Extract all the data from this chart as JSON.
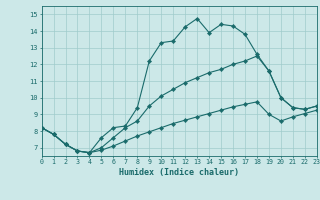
{
  "xlabel": "Humidex (Indice chaleur)",
  "bg_color": "#cce8e8",
  "grid_color": "#a0cccc",
  "line_color": "#1a6b6b",
  "xlim": [
    0,
    23
  ],
  "ylim": [
    6.5,
    15.5
  ],
  "xticks": [
    0,
    1,
    2,
    3,
    4,
    5,
    6,
    7,
    8,
    9,
    10,
    11,
    12,
    13,
    14,
    15,
    16,
    17,
    18,
    19,
    20,
    21,
    22,
    23
  ],
  "yticks": [
    7,
    8,
    9,
    10,
    11,
    12,
    13,
    14,
    15
  ],
  "line1_x": [
    0,
    1,
    2,
    3,
    4,
    5,
    6,
    7,
    8,
    9,
    10,
    11,
    12,
    13,
    14,
    15,
    16,
    17,
    18,
    19,
    20,
    21,
    22,
    23
  ],
  "line1_y": [
    8.2,
    7.8,
    7.2,
    6.8,
    6.7,
    7.6,
    8.2,
    8.3,
    9.4,
    12.2,
    13.3,
    13.4,
    14.25,
    14.75,
    13.9,
    14.4,
    14.3,
    13.8,
    12.6,
    11.6,
    10.0,
    9.4,
    9.3,
    9.5
  ],
  "line2_x": [
    0,
    1,
    2,
    3,
    4,
    5,
    6,
    7,
    8,
    9,
    10,
    11,
    12,
    13,
    14,
    15,
    16,
    17,
    18,
    19,
    20,
    21,
    22,
    23
  ],
  "line2_y": [
    8.2,
    7.8,
    7.2,
    6.8,
    6.7,
    7.0,
    7.6,
    8.2,
    8.6,
    9.5,
    10.1,
    10.5,
    10.9,
    11.2,
    11.5,
    11.7,
    12.0,
    12.2,
    12.5,
    11.6,
    10.0,
    9.4,
    9.3,
    9.5
  ],
  "line3_x": [
    0,
    1,
    2,
    3,
    4,
    5,
    6,
    7,
    8,
    9,
    10,
    11,
    12,
    13,
    14,
    15,
    16,
    17,
    18,
    19,
    20,
    21,
    22,
    23
  ],
  "line3_y": [
    8.2,
    7.8,
    7.2,
    6.8,
    6.7,
    6.85,
    7.1,
    7.4,
    7.7,
    7.95,
    8.2,
    8.45,
    8.65,
    8.85,
    9.05,
    9.25,
    9.45,
    9.6,
    9.75,
    9.0,
    8.6,
    8.85,
    9.05,
    9.25
  ]
}
